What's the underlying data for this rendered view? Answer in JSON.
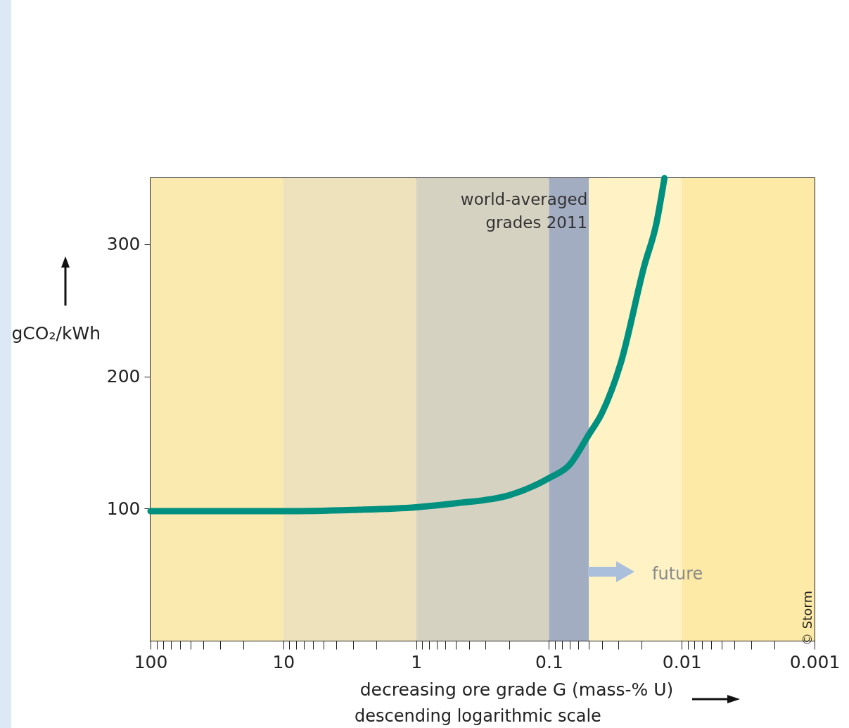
{
  "chart_data": {
    "type": "line",
    "xlabel": "decreasing ore grade G (mass-% U)",
    "ylabel": "gCO₂/kWh",
    "x": [
      100,
      30,
      10,
      3,
      1,
      0.5,
      0.2,
      0.1,
      0.07,
      0.05,
      0.04,
      0.0288,
      0.0191,
      0.0155,
      0.0135
    ],
    "series": [
      {
        "color": "#009080",
        "values": [
          98,
          98,
          98,
          99,
          101,
          104,
          110,
          123,
          133,
          156,
          172,
          210,
          284,
          316,
          350
        ]
      }
    ],
    "log": "x",
    "xlim": [
      100,
      0.001
    ],
    "ylim": [
      0,
      350
    ],
    "xticks": [
      100,
      {
        "value": 90,
        "label": null
      },
      {
        "value": 80,
        "label": null
      },
      {
        "value": 70,
        "label": null
      },
      {
        "value": 60,
        "label": null
      },
      {
        "value": 50,
        "label": null
      },
      {
        "value": 40,
        "label": null
      },
      {
        "value": 30,
        "label": null
      },
      {
        "value": 20,
        "label": null
      },
      10,
      {
        "value": 9,
        "label": null
      },
      {
        "value": 8,
        "label": null
      },
      {
        "value": 7,
        "label": null
      },
      {
        "value": 6,
        "label": null
      },
      {
        "value": 5,
        "label": null
      },
      {
        "value": 4,
        "label": null
      },
      {
        "value": 3,
        "label": null
      },
      {
        "value": 2,
        "label": null
      },
      1,
      {
        "value": 0.9,
        "label": null
      },
      {
        "value": 0.8,
        "label": null
      },
      {
        "value": 0.7,
        "label": null
      },
      {
        "value": 0.6,
        "label": null
      },
      {
        "value": 0.5,
        "label": null
      },
      {
        "value": 0.4,
        "label": null
      },
      {
        "value": 0.3,
        "label": null
      },
      {
        "value": 0.2,
        "label": null
      },
      0.1,
      {
        "value": 0.09,
        "label": null
      },
      {
        "value": 0.08,
        "label": null
      },
      {
        "value": 0.07,
        "label": null
      },
      {
        "value": 0.06,
        "label": null
      },
      {
        "value": 0.05,
        "label": null
      },
      {
        "value": 0.04,
        "label": null
      },
      {
        "value": 0.03,
        "label": null
      },
      {
        "value": 0.02,
        "label": null
      },
      0.01,
      {
        "value": 0.009,
        "label": null
      },
      {
        "value": 0.008,
        "label": null
      },
      {
        "value": 0.007,
        "label": null
      },
      {
        "value": 0.006,
        "label": null
      },
      {
        "value": 0.005,
        "label": null
      },
      {
        "value": 0.004,
        "label": null
      },
      {
        "value": 0.003,
        "label": null
      },
      {
        "value": 0.002,
        "label": null
      },
      0.001
    ],
    "yticks": [
      100,
      200,
      300
    ],
    "grid": false,
    "marker": "none",
    "line_style": "solid",
    "bands": [
      {
        "axis": "x",
        "from": 100,
        "to": 10,
        "color": "#fbeab0"
      },
      {
        "axis": "x",
        "from": 10,
        "to": 1,
        "color": "#eee2bc"
      },
      {
        "axis": "x",
        "from": 1,
        "to": 0.1,
        "color": "#d6d2c2"
      },
      {
        "axis": "x",
        "from": 0.1,
        "to": 0.05,
        "color": "#a3adc2",
        "label": "world-averaged grades 2011"
      },
      {
        "axis": "x",
        "from": 0.05,
        "to": 0.01,
        "color": "#fff3c6"
      },
      {
        "axis": "x",
        "from": 0.01,
        "to": 0.001,
        "color": "#fdeaa6"
      }
    ],
    "annotations": [
      "future",
      "descending logarithmic scale",
      "© Storm"
    ]
  }
}
